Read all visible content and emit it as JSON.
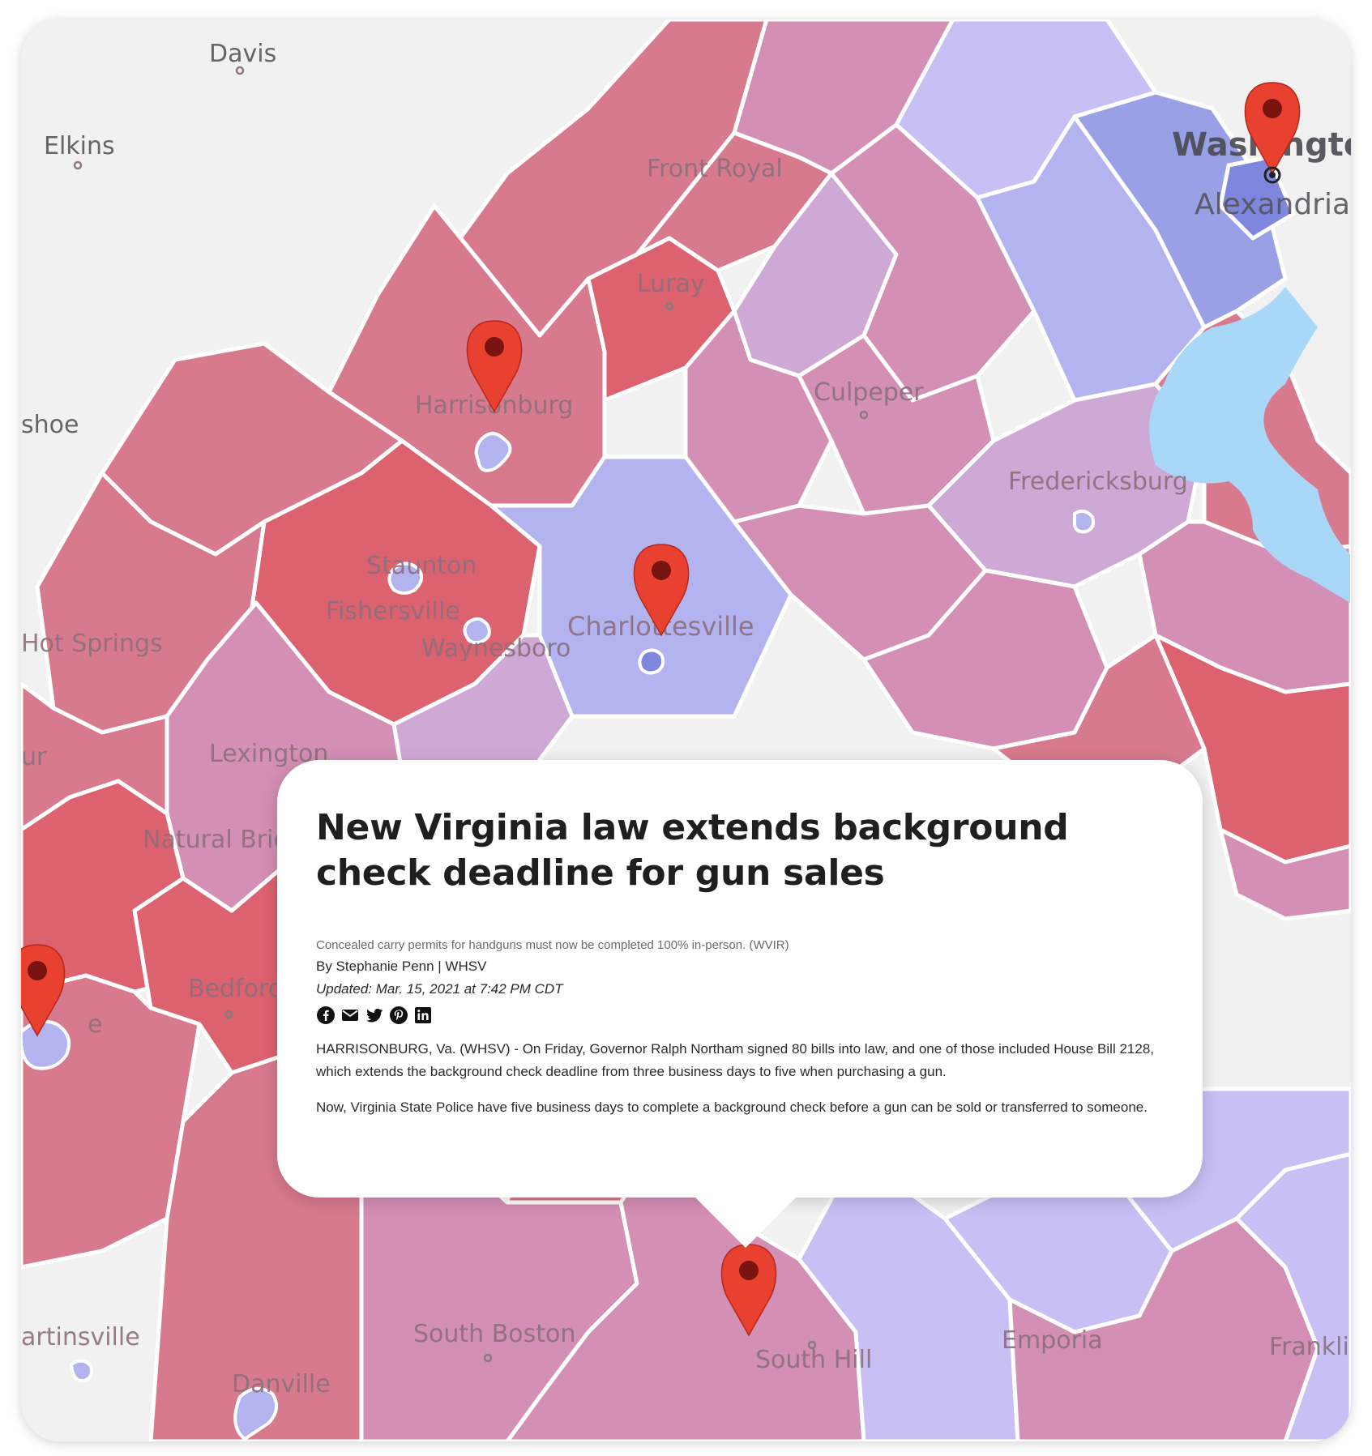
{
  "map": {
    "places": {
      "davis": "Davis",
      "elkins": "Elkins",
      "shoe": "shoe",
      "front_royal": "Front Royal",
      "luray": "Luray",
      "washington": "Washington",
      "alexandria": "Alexandria",
      "harrisonburg": "Harrisonburg",
      "culpeper": "Culpeper",
      "fredericksburg": "Fredericksburg",
      "staunton": "Staunton",
      "fishersville": "Fishersville",
      "waynesboro": "Waynesboro",
      "charlottesville": "Charlottesville",
      "hot_springs": "Hot Springs",
      "lexington": "Lexington",
      "natural_bridge": "Natural Bridge",
      "ur": "ur",
      "bedford": "Bedford",
      "lynchburg_partial": "e",
      "martinsville": "artinsville",
      "danville": "Danville",
      "south_boston": "South Boston",
      "south_hill": "South Hill",
      "emporia": "Emporia",
      "franklin": "Frankli"
    },
    "colors": {
      "strong_red": "#dd6270",
      "red": "#d87a8e",
      "pink": "#d48fb4",
      "light_purple": "#cfa9d6",
      "lavender": "#c8c0f5",
      "light_blue": "#b2b3ef",
      "blue": "#9aa0e6",
      "background": "#f1f1f1",
      "water": "#a9d7f7",
      "pin": "#e8412f"
    }
  },
  "popup": {
    "headline": "New Virginia law extends background check deadline for gun sales",
    "caption": "Concealed carry permits for handguns must now be completed 100% in-person.  (WVIR)",
    "byline": "By Stephanie Penn | WHSV",
    "updated": "Updated: Mar. 15, 2021 at 7:42 PM CDT",
    "share_icons": [
      "facebook-icon",
      "email-icon",
      "twitter-icon",
      "pinterest-icon",
      "linkedin-icon"
    ],
    "paragraphs": [
      "HARRISONBURG, Va. (WHSV) - On Friday, Governor Ralph Northam signed 80 bills into law, and one of those included House Bill 2128, which extends the background check deadline from three business days to five when purchasing a gun.",
      "Now, Virginia State Police have five business days to complete a background check before a gun can be sold or transferred to someone."
    ]
  }
}
